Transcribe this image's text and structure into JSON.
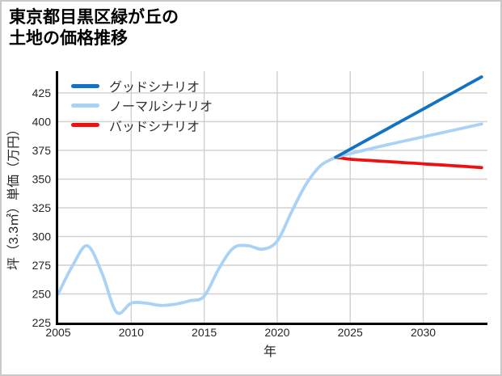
{
  "header": {
    "title_line1": "東京都目黒区緑が丘の",
    "title_line2": "土地の価格推移"
  },
  "colors": {
    "background": "#ffffff",
    "card_border": "#c9c9c9",
    "grid": "#d0d0d0",
    "spine": "#000000",
    "tick_text": "#262626",
    "good": "#1272c4",
    "normal": "#a9d2f6",
    "bad": "#ed1111"
  },
  "chart_data": {
    "type": "line",
    "title": "東京都目黒区緑が丘の土地の価格推移",
    "xlabel": "年",
    "ylabel": "坪（3.3㎡）単価（万円）",
    "x_ticks": [
      2005,
      2010,
      2015,
      2020,
      2025,
      2030
    ],
    "y_ticks": [
      225,
      250,
      275,
      300,
      325,
      350,
      375,
      400,
      425
    ],
    "xlim": [
      2005,
      2034.4
    ],
    "ylim": [
      225,
      444
    ],
    "grid": true,
    "legend_position": "upper-left",
    "series": [
      {
        "id": "good",
        "name": "グッドシナリオ",
        "color": "#1272c4",
        "smooth": true,
        "x": [
          2024,
          2025,
          2026,
          2027,
          2028,
          2029,
          2030,
          2031,
          2032,
          2033,
          2034
        ],
        "values": [
          369,
          376,
          383,
          390,
          397,
          404,
          411,
          418,
          425,
          432,
          439
        ]
      },
      {
        "id": "normal",
        "name": "ノーマルシナリオ",
        "color": "#a9d2f6",
        "smooth": true,
        "x": [
          2024,
          2025,
          2026,
          2027,
          2028,
          2029,
          2030,
          2031,
          2032,
          2033,
          2034
        ],
        "values": [
          369,
          372.2,
          375.3,
          378.3,
          381.2,
          384,
          386.8,
          389.6,
          392.4,
          395.2,
          398
        ]
      },
      {
        "id": "bad",
        "name": "バッドシナリオ",
        "color": "#ed1111",
        "smooth": true,
        "x": [
          2024,
          2025,
          2026,
          2027,
          2028,
          2029,
          2030,
          2031,
          2032,
          2033,
          2034
        ],
        "values": [
          369,
          367.3,
          366.5,
          365.7,
          364.9,
          364.1,
          363.3,
          362.5,
          361.7,
          360.9,
          360
        ]
      },
      {
        "id": "history",
        "name": "",
        "color": "#a9d2f6",
        "smooth": true,
        "x": [
          2005,
          2006,
          2007,
          2008,
          2009,
          2010,
          2011,
          2012,
          2013,
          2014,
          2015,
          2016,
          2017,
          2018,
          2019,
          2020,
          2021,
          2022,
          2023,
          2024
        ],
        "values": [
          250,
          275,
          292,
          268,
          234,
          242,
          242,
          240,
          241,
          244,
          248,
          272,
          290,
          292,
          289,
          296,
          322,
          346,
          362,
          369
        ]
      }
    ]
  }
}
